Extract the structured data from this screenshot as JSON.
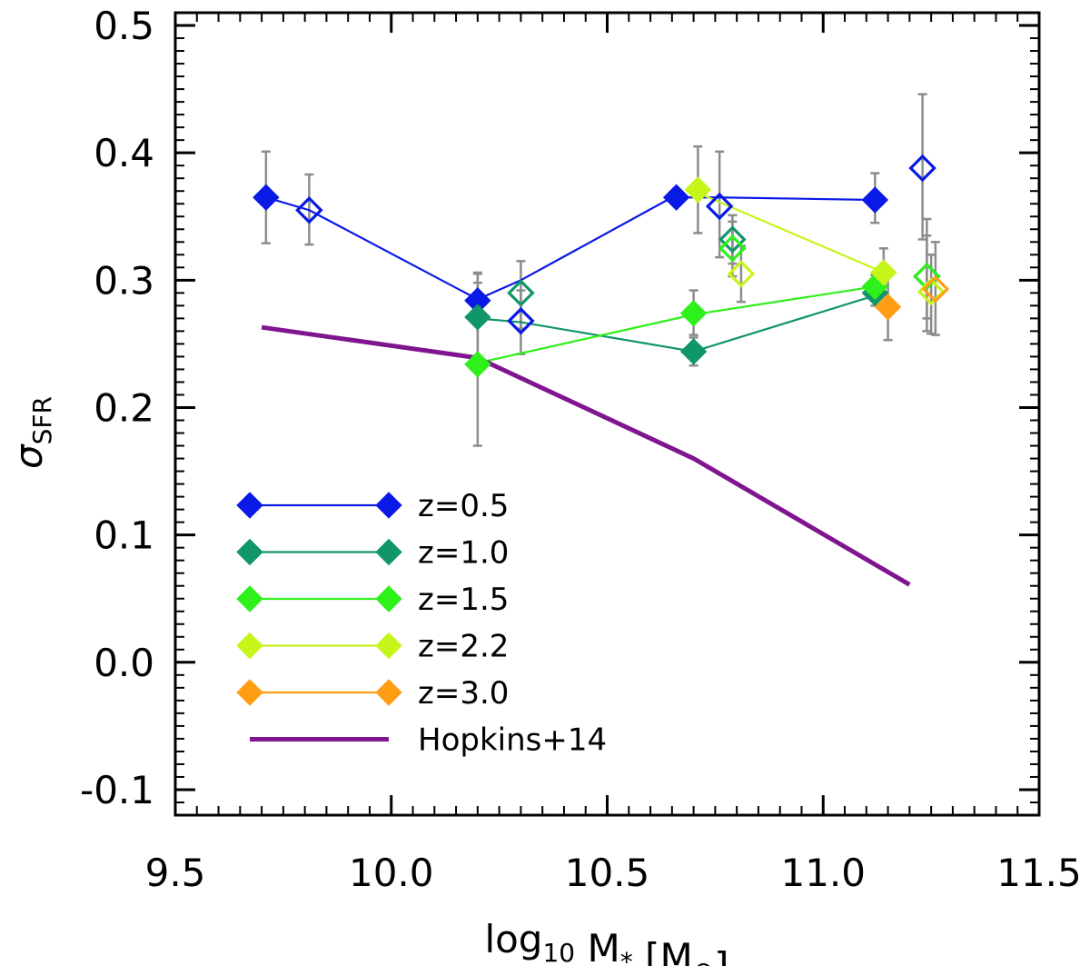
{
  "chart_data": {
    "type": "scatter",
    "xlabel": {
      "main": "log",
      "sub": "10",
      "rest": " M",
      "star": "*",
      "unit_open": " [M",
      "unit_sym": "⊙",
      "unit_close": "]"
    },
    "ylabel": {
      "main": "σ",
      "sub": "SFR"
    },
    "xlim": [
      9.5,
      11.5
    ],
    "ylim": [
      -0.12,
      0.51
    ],
    "x_ticks": [
      9.5,
      10.0,
      10.5,
      11.0,
      11.5
    ],
    "x_tick_labels": [
      "9.5",
      "10.0",
      "10.5",
      "11.0",
      "11.5"
    ],
    "y_ticks": [
      -0.1,
      0.0,
      0.1,
      0.2,
      0.3,
      0.4,
      0.5
    ],
    "y_tick_labels": [
      "-0.1",
      "0.0",
      "0.1",
      "0.2",
      "0.3",
      "0.4",
      "0.5"
    ],
    "x_minor_step": 0.05,
    "y_minor_step": 0.01,
    "grid": false,
    "legend_position": "lower-left",
    "series": [
      {
        "name": "z=0.5",
        "color": "#0a1ae6",
        "line": [
          [
            9.71,
            0.365
          ],
          [
            9.81,
            0.355
          ],
          [
            10.2,
            0.285
          ],
          [
            10.3,
            0.3
          ],
          [
            10.65,
            0.365
          ],
          [
            10.76,
            0.365
          ],
          [
            11.12,
            0.363
          ]
        ],
        "filled": [
          {
            "x": 9.71,
            "y": 0.365,
            "err": [
              0.329,
              0.401
            ]
          },
          {
            "x": 10.2,
            "y": 0.284,
            "err": [
              0.266,
              0.305
            ]
          },
          {
            "x": 10.66,
            "y": 0.365,
            "err": [
              0.359,
              0.371
            ]
          },
          {
            "x": 11.12,
            "y": 0.363,
            "err": [
              0.345,
              0.384
            ]
          }
        ],
        "open": [
          {
            "x": 9.81,
            "y": 0.355,
            "err": [
              0.328,
              0.383
            ]
          },
          {
            "x": 10.3,
            "y": 0.268,
            "err": [
              0.242,
              0.292
            ]
          },
          {
            "x": 10.76,
            "y": 0.358,
            "err": [
              0.318,
              0.401
            ]
          },
          {
            "x": 11.23,
            "y": 0.388,
            "err": [
              0.332,
              0.446
            ]
          }
        ]
      },
      {
        "name": "z=1.0",
        "color": "#11956b",
        "line": [
          [
            10.2,
            0.27
          ],
          [
            10.3,
            0.267
          ],
          [
            10.7,
            0.244
          ],
          [
            11.12,
            0.288
          ]
        ],
        "filled": [
          {
            "x": 10.2,
            "y": 0.271,
            "err": [
              0.24,
              0.306
            ]
          },
          {
            "x": 10.7,
            "y": 0.244,
            "err": [
              0.233,
              0.255
            ]
          },
          {
            "x": 11.12,
            "y": 0.29,
            "err": [
              0.28,
              0.298
            ]
          }
        ],
        "open": [
          {
            "x": 10.3,
            "y": 0.29,
            "err": [
              0.262,
              0.315
            ]
          },
          {
            "x": 10.79,
            "y": 0.332,
            "err": [
              0.313,
              0.351
            ]
          },
          {
            "x": 11.24,
            "y": 0.303,
            "err": [
              0.26,
              0.348
            ]
          }
        ]
      },
      {
        "name": "z=1.5",
        "color": "#2ef01a",
        "line": [
          [
            10.2,
            0.235
          ],
          [
            10.7,
            0.273
          ],
          [
            11.12,
            0.295
          ]
        ],
        "filled": [
          {
            "x": 10.2,
            "y": 0.234,
            "err": [
              0.17,
              0.298
            ]
          },
          {
            "x": 10.7,
            "y": 0.274,
            "err": [
              0.257,
              0.292
            ]
          },
          {
            "x": 11.12,
            "y": 0.295,
            "err": [
              0.286,
              0.304
            ]
          }
        ],
        "open": [
          {
            "x": 10.79,
            "y": 0.325,
            "err": [
              0.303,
              0.346
            ]
          },
          {
            "x": 11.24,
            "y": 0.303,
            "err": [
              0.27,
              0.335
            ]
          }
        ]
      },
      {
        "name": "z=2.2",
        "color": "#c6f51a",
        "line": [
          [
            10.7,
            0.37
          ],
          [
            11.14,
            0.306
          ]
        ],
        "filled": [
          {
            "x": 10.71,
            "y": 0.371,
            "err": [
              0.337,
              0.405
            ]
          },
          {
            "x": 11.14,
            "y": 0.306,
            "err": [
              0.288,
              0.325
            ]
          }
        ],
        "open": [
          {
            "x": 10.81,
            "y": 0.305,
            "err": [
              0.283,
              0.327
            ]
          },
          {
            "x": 11.25,
            "y": 0.291,
            "err": [
              0.258,
              0.32
            ]
          }
        ]
      },
      {
        "name": "z=3.0",
        "color": "#ff9d13",
        "line": [],
        "filled": [
          {
            "x": 11.15,
            "y": 0.279,
            "err": [
              0.253,
              0.305
            ]
          }
        ],
        "open": [
          {
            "x": 11.26,
            "y": 0.293,
            "err": [
              0.257,
              0.33
            ]
          }
        ]
      },
      {
        "name": "Hopkins+14",
        "color": "#80168f",
        "line": [
          [
            9.7,
            0.263
          ],
          [
            10.2,
            0.239
          ],
          [
            10.7,
            0.16
          ],
          [
            11.2,
            0.061
          ]
        ],
        "filled": [],
        "open": []
      }
    ],
    "errorbar_color": "#8c8c8c"
  }
}
